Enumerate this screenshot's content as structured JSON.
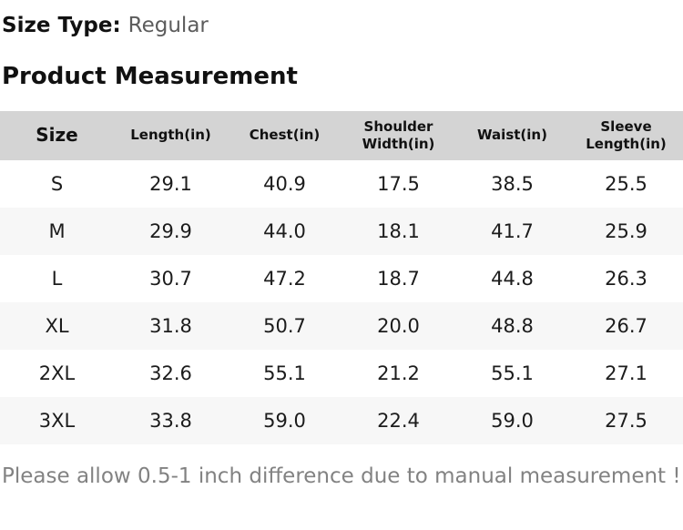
{
  "header": {
    "size_type_label": "Size Type:",
    "size_type_value": "Regular",
    "section_title": "Product Measurement"
  },
  "table": {
    "columns": [
      "Size",
      "Length(in)",
      "Chest(in)",
      "Shoulder Width(in)",
      "Waist(in)",
      "Sleeve Length(in)"
    ],
    "rows": [
      {
        "size": "S",
        "length": "29.1",
        "chest": "40.9",
        "shoulder": "17.5",
        "waist": "38.5",
        "sleeve": "25.5"
      },
      {
        "size": "M",
        "length": "29.9",
        "chest": "44.0",
        "shoulder": "18.1",
        "waist": "41.7",
        "sleeve": "25.9"
      },
      {
        "size": "L",
        "length": "30.7",
        "chest": "47.2",
        "shoulder": "18.7",
        "waist": "44.8",
        "sleeve": "26.3"
      },
      {
        "size": "XL",
        "length": "31.8",
        "chest": "50.7",
        "shoulder": "20.0",
        "waist": "48.8",
        "sleeve": "26.7"
      },
      {
        "size": "2XL",
        "length": "32.6",
        "chest": "55.1",
        "shoulder": "21.2",
        "waist": "55.1",
        "sleeve": "27.1"
      },
      {
        "size": "3XL",
        "length": "33.8",
        "chest": "59.0",
        "shoulder": "22.4",
        "waist": "59.0",
        "sleeve": "27.5"
      }
    ]
  },
  "note": "Please allow 0.5-1 inch difference due to manual measurement !",
  "colors": {
    "header_row_bg": "#d4d4d4",
    "alt_row_bg": "#f7f7f7",
    "size_type_value_text": "#5c5c5c",
    "note_text": "#828282"
  }
}
